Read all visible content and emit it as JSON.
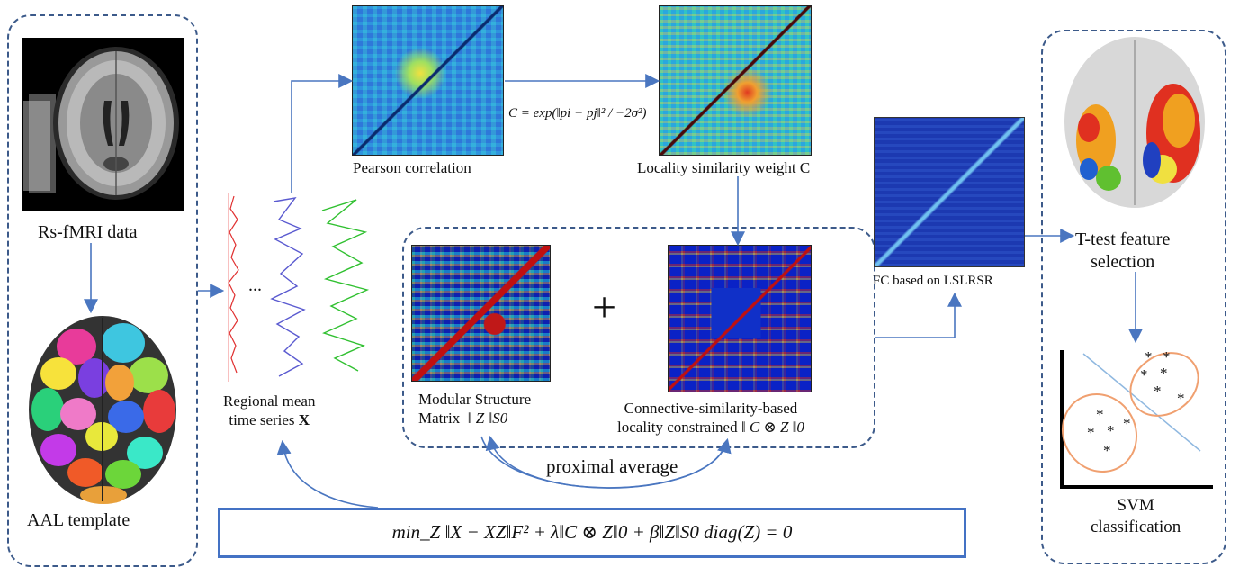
{
  "labels": {
    "rsfmri": "Rs-fMRI data",
    "aal": "AAL template",
    "regional_line1": "Regional mean",
    "regional_line2": "time series",
    "regional_var": "X",
    "ellipsis": "...",
    "pearson": "Pearson correlation",
    "locality": "Locality similarity weight C",
    "modular_line1": "Modular Structure",
    "modular_line2": "Matrix",
    "modular_norm": "‖ Z ‖S0",
    "connective_line1": "Connective-similarity-based",
    "connective_line2": "locality constrained",
    "connective_norm": "‖ C ⊗ Z ‖0",
    "plus": "+",
    "proximal": "proximal average",
    "fc": "FC based on LSLRSR",
    "ttest_line1": "T-test feature",
    "ttest_line2": "selection",
    "svm_line1": "SVM",
    "svm_line2": "classification"
  },
  "formulas": {
    "similarity": "C = exp(‖pi − pj‖² / −2σ²)",
    "objective": "min_Z ‖X − XZ‖F² + λ‖C ⊗ Z‖0 + β‖Z‖S0  diag(Z) = 0"
  },
  "svm_markers": "*",
  "colors": {
    "arrow": "#4a76c0",
    "dashed_border": "#3c5a8a",
    "objective_border": "#4472c4",
    "cluster_ellipse": "#f0a070",
    "separator": "#8fb8e0"
  }
}
